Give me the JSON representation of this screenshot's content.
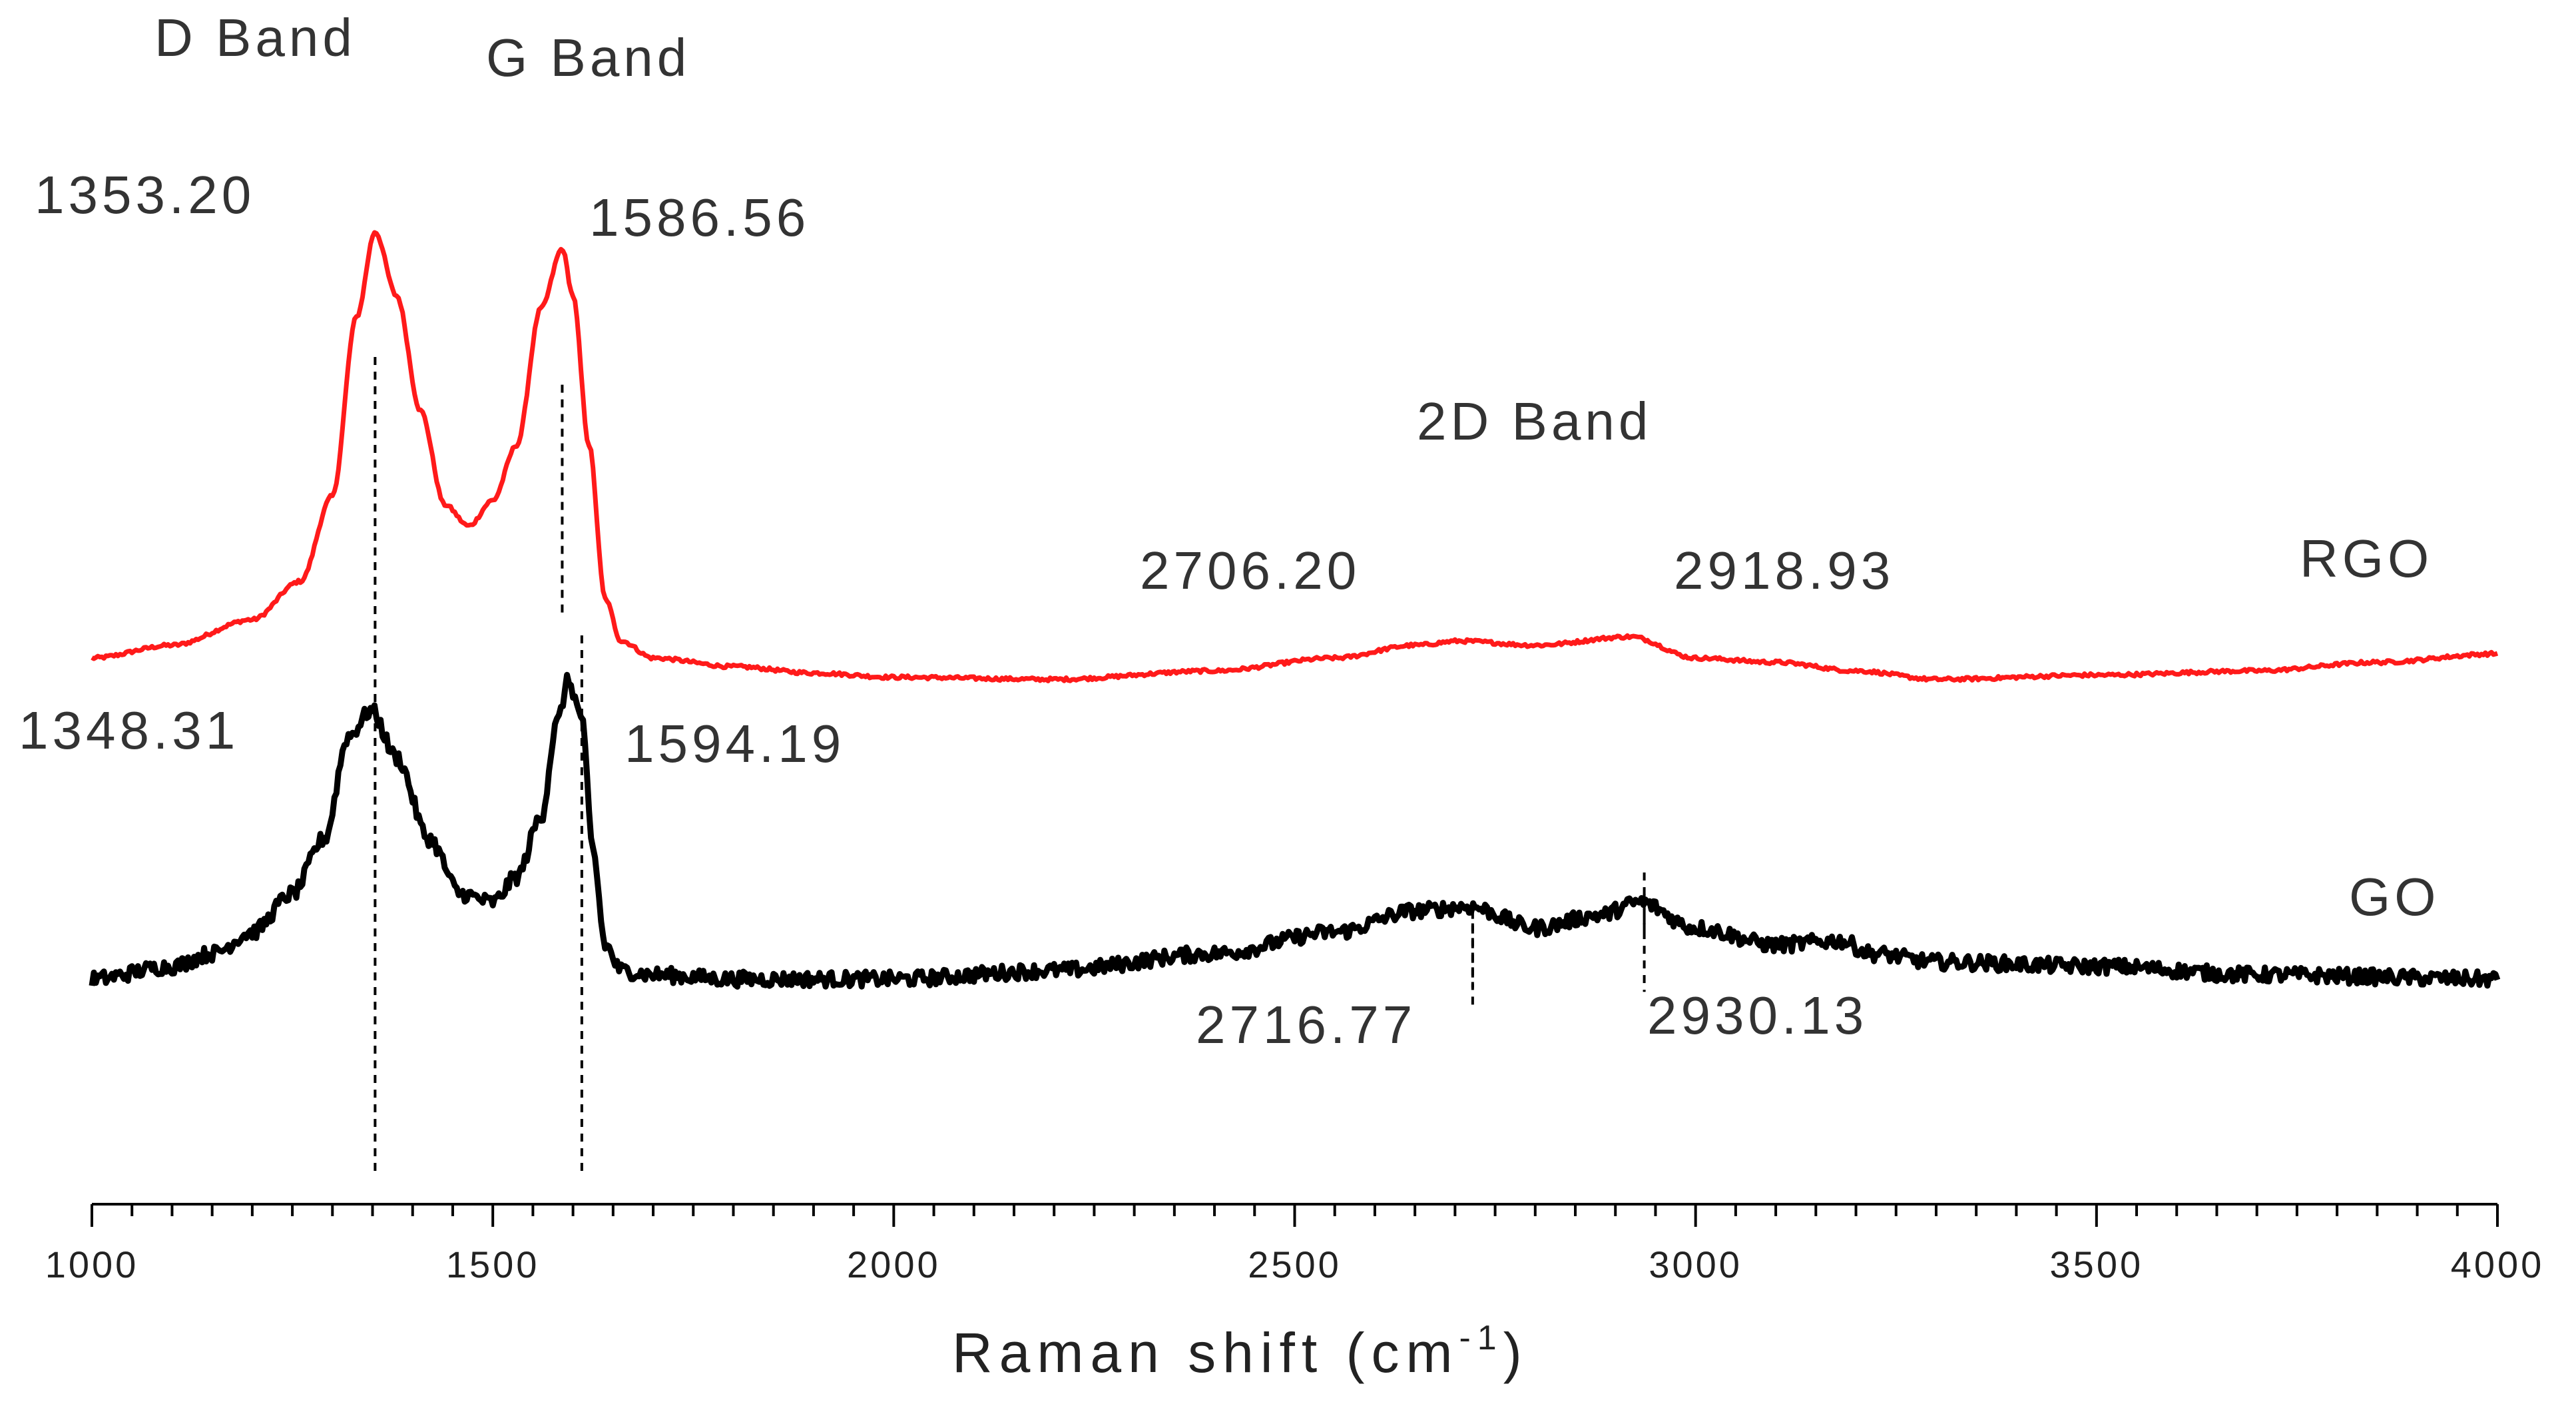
{
  "chart_data": {
    "type": "line",
    "xlabel": "Raman shift (cm",
    "xlabel_sup": "-1",
    "xlabel_close": ")",
    "xlim": [
      1000,
      4000
    ],
    "xticks": [
      1000,
      1500,
      2000,
      2500,
      3000,
      3500,
      4000
    ],
    "xtick_labels": [
      "1000",
      "1500",
      "2000",
      "2500",
      "3000",
      "3500",
      "4000"
    ],
    "minor_tick_step": 50,
    "y_axis_shown": false,
    "y_units": "arbitrary intensity (0 = GO baseline, 1 = RGO D-band peak)",
    "ylim": [
      -0.55,
      1.55
    ],
    "grid": false,
    "legend": "none (series labeled inline at right)",
    "colors": {
      "RGO": "#ff1a1a",
      "GO": "#000000",
      "axis": "#000000",
      "band_lines": "#000000"
    },
    "band_labels": [
      {
        "text": "D Band"
      },
      {
        "text": "G Band"
      },
      {
        "text": "2D Band"
      }
    ],
    "series": [
      {
        "name": "RGO",
        "noise": 0.004,
        "points": [
          [
            1000,
            0.0
          ],
          [
            1100,
            0.03
          ],
          [
            1200,
            0.09
          ],
          [
            1260,
            0.18
          ],
          [
            1300,
            0.38
          ],
          [
            1330,
            0.8
          ],
          [
            1353.2,
            1.0
          ],
          [
            1380,
            0.85
          ],
          [
            1410,
            0.58
          ],
          [
            1440,
            0.36
          ],
          [
            1470,
            0.31
          ],
          [
            1500,
            0.37
          ],
          [
            1530,
            0.5
          ],
          [
            1560,
            0.82
          ],
          [
            1586.56,
            0.96
          ],
          [
            1600,
            0.85
          ],
          [
            1620,
            0.5
          ],
          [
            1640,
            0.14
          ],
          [
            1660,
            0.04
          ],
          [
            1700,
            0.0
          ],
          [
            1800,
            -0.02
          ],
          [
            1900,
            -0.035
          ],
          [
            2000,
            -0.045
          ],
          [
            2200,
            -0.05
          ],
          [
            2400,
            -0.03
          ],
          [
            2550,
            0.0
          ],
          [
            2650,
            0.03
          ],
          [
            2706.2,
            0.04
          ],
          [
            2800,
            0.03
          ],
          [
            2918.93,
            0.05
          ],
          [
            3000,
            0.0
          ],
          [
            3100,
            -0.01
          ],
          [
            3200,
            -0.03
          ],
          [
            3300,
            -0.05
          ],
          [
            3500,
            -0.04
          ],
          [
            3700,
            -0.03
          ],
          [
            3850,
            -0.01
          ],
          [
            4000,
            0.01
          ]
        ]
      },
      {
        "name": "GO",
        "noise": 0.018,
        "points": [
          [
            1000,
            0.0
          ],
          [
            1100,
            0.03
          ],
          [
            1150,
            0.06
          ],
          [
            1200,
            0.11
          ],
          [
            1250,
            0.2
          ],
          [
            1290,
            0.33
          ],
          [
            1320,
            0.57
          ],
          [
            1348.31,
            0.63
          ],
          [
            1380,
            0.52
          ],
          [
            1420,
            0.33
          ],
          [
            1460,
            0.2
          ],
          [
            1500,
            0.18
          ],
          [
            1530,
            0.24
          ],
          [
            1560,
            0.38
          ],
          [
            1580,
            0.6
          ],
          [
            1594.19,
            0.7
          ],
          [
            1610,
            0.62
          ],
          [
            1625,
            0.3
          ],
          [
            1640,
            0.08
          ],
          [
            1660,
            0.02
          ],
          [
            1700,
            0.01
          ],
          [
            1800,
            0.0
          ],
          [
            2000,
            0.0
          ],
          [
            2200,
            0.02
          ],
          [
            2400,
            0.06
          ],
          [
            2550,
            0.11
          ],
          [
            2650,
            0.16
          ],
          [
            2716.77,
            0.17
          ],
          [
            2800,
            0.12
          ],
          [
            2880,
            0.15
          ],
          [
            2930.13,
            0.18
          ],
          [
            3000,
            0.12
          ],
          [
            3100,
            0.08
          ],
          [
            3180,
            0.09
          ],
          [
            3220,
            0.06
          ],
          [
            3300,
            0.04
          ],
          [
            3500,
            0.03
          ],
          [
            3700,
            0.01
          ],
          [
            4000,
            0.0
          ]
        ]
      }
    ],
    "series_labels": [
      {
        "text": "RGO",
        "color": "#222222"
      },
      {
        "text": "GO",
        "color": "#222222"
      }
    ],
    "band_lines": [
      {
        "x": 1353.2,
        "y_from": -0.45,
        "y_to": 1.46
      },
      {
        "x": 1586.56,
        "y_from": 0.86,
        "y_to": 1.41
      },
      {
        "x": 1611,
        "y_from": -0.45,
        "y_to": 0.82
      },
      {
        "x": 2722,
        "y_from": 0.16,
        "y_to": -0.02
      },
      {
        "x": 2722,
        "y_from": -0.06,
        "y_to": 0.14
      },
      {
        "x": 2936,
        "y_from": 0.2,
        "y_to": 0.1
      },
      {
        "x": 2936,
        "y_from": 0.25,
        "y_to": -0.03
      }
    ],
    "annotations": [
      {
        "text": "1353.20",
        "x": 1353.2,
        "series": "RGO"
      },
      {
        "text": "1586.56",
        "x": 1586.56,
        "series": "RGO"
      },
      {
        "text": "2706.20",
        "x": 2706.2,
        "series": "RGO"
      },
      {
        "text": "2918.93",
        "x": 2918.93,
        "series": "RGO"
      },
      {
        "text": "1348.31",
        "x": 1348.31,
        "series": "GO"
      },
      {
        "text": "1594.19",
        "x": 1594.19,
        "series": "GO"
      },
      {
        "text": "2716.77",
        "x": 2716.77,
        "series": "GO"
      },
      {
        "text": "2930.13",
        "x": 2930.13,
        "series": "GO"
      }
    ]
  }
}
